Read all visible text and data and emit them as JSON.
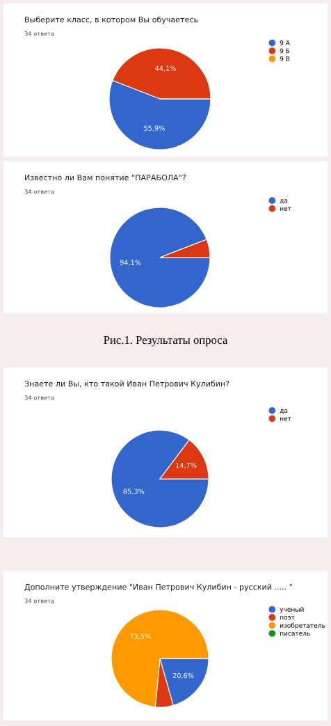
{
  "chart_data": [
    {
      "type": "pie",
      "title": "Выберите класс, в котором Вы обучаетесь",
      "subtitle": "34 ответа",
      "categories": [
        "9 А",
        "9 Б",
        "9 В"
      ],
      "values": [
        55.9,
        44.1,
        0
      ],
      "colors": [
        "#3366cc",
        "#dc3912",
        "#ff9900"
      ],
      "value_labels": [
        "55,9%",
        "44,1%",
        null
      ],
      "legend": "right"
    },
    {
      "type": "pie",
      "title": "Известно ли Вам понятие \"ПАРАБОЛА\"?",
      "subtitle": "34 ответа",
      "categories": [
        "да",
        "нет"
      ],
      "values": [
        94.1,
        5.9
      ],
      "colors": [
        "#3366cc",
        "#dc3912"
      ],
      "value_labels": [
        "94,1%",
        null
      ],
      "legend": "right",
      "annotations": [
        "Рис.1. Результаты опроса"
      ]
    },
    {
      "type": "pie",
      "title": "Знаете ли Вы, кто такой Иван Петрович Кулибин?",
      "subtitle": "34 ответа",
      "categories": [
        "да",
        "нет"
      ],
      "values": [
        85.3,
        14.7
      ],
      "colors": [
        "#3366cc",
        "#dc3912"
      ],
      "value_labels": [
        "85,3%",
        "14,7%"
      ],
      "legend": "right"
    },
    {
      "type": "pie",
      "title": "Дополните утверждение \"Иван Петрович Кулибин - русский ..... \"",
      "subtitle": "34 ответа",
      "categories": [
        "ученый",
        "поэт",
        "изобретатель",
        "писатель"
      ],
      "values": [
        20.6,
        5.9,
        73.5,
        0
      ],
      "colors": [
        "#3366cc",
        "#dc3912",
        "#ff9900",
        "#109618"
      ],
      "value_labels": [
        "20,6%",
        null,
        "73,5%",
        null
      ],
      "legend": "right"
    }
  ]
}
